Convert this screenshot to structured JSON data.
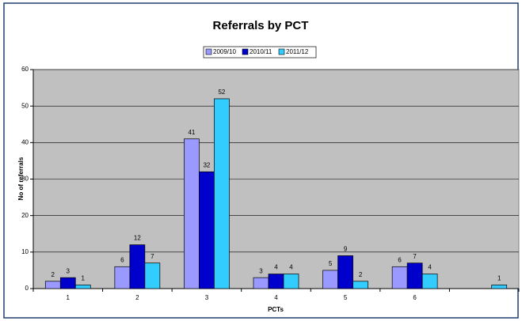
{
  "chart_data": {
    "type": "bar",
    "title": "Referrals by PCT",
    "x_label": "PCTs",
    "y_label": "No of referrals",
    "categories": [
      "1",
      "2",
      "3",
      "4",
      "5",
      "6",
      null
    ],
    "series": [
      {
        "name": "2009/10",
        "color": "#9999ff",
        "values": [
          2,
          6,
          41,
          3,
          5,
          6,
          null
        ]
      },
      {
        "name": "2010/11",
        "color": "#0000cc",
        "values": [
          3,
          12,
          32,
          4,
          9,
          7,
          null
        ]
      },
      {
        "name": "2011/12",
        "color": "#33ccff",
        "values": [
          1,
          7,
          52,
          4,
          2,
          4,
          1
        ]
      }
    ],
    "ylim": [
      0,
      60
    ],
    "yticks": [
      0,
      10,
      20,
      30,
      40,
      50,
      60
    ],
    "grid": true,
    "legend": "top"
  }
}
